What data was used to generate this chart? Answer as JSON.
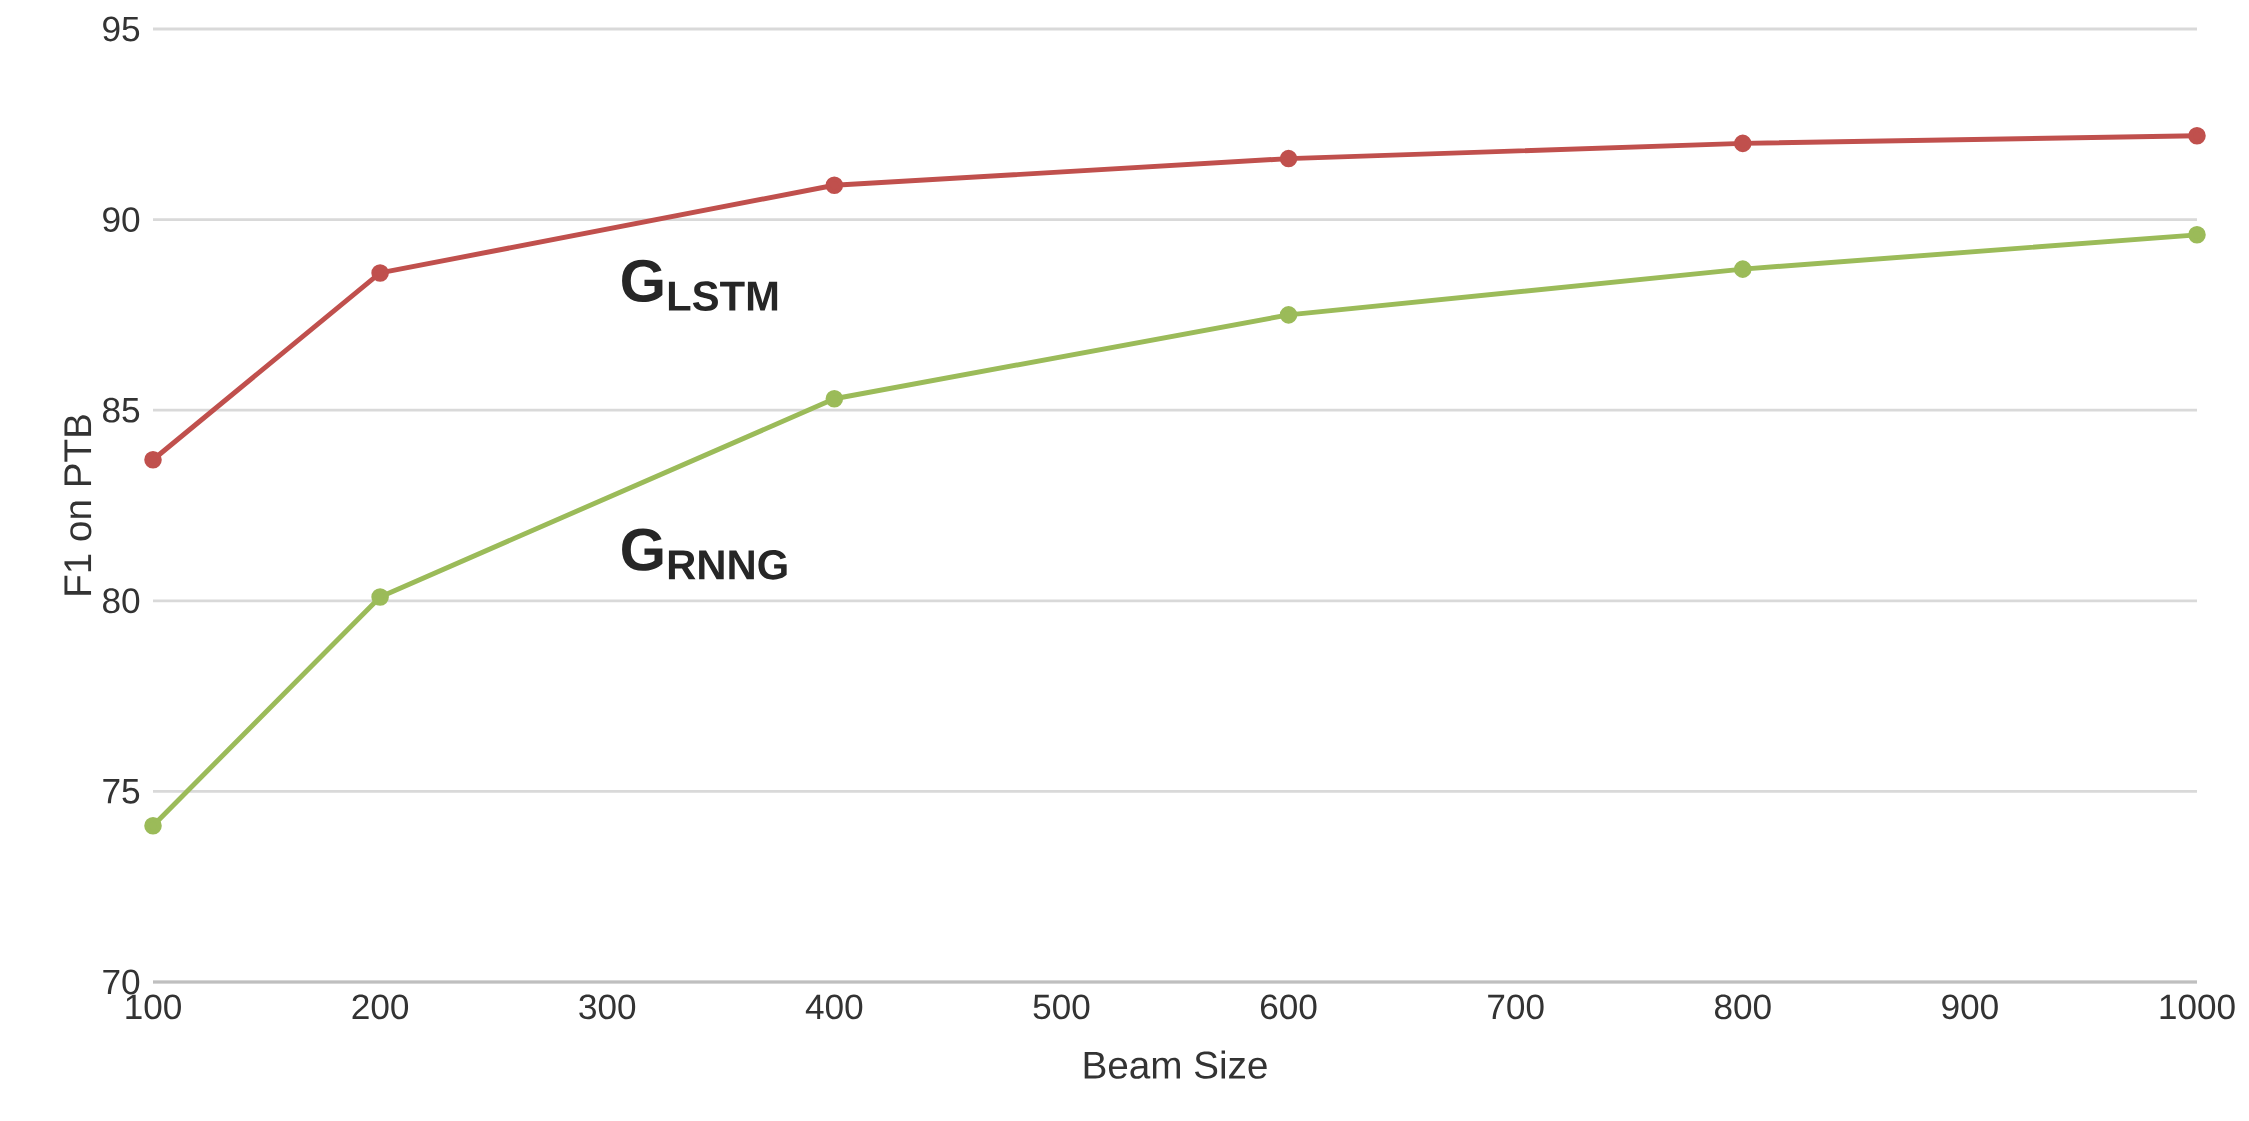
{
  "chart_data": {
    "type": "line",
    "xlabel": "Beam Size",
    "ylabel": "F1 on PTB",
    "x": [
      100,
      200,
      400,
      600,
      800,
      1000
    ],
    "series": [
      {
        "name": "G$_{LSTM}$",
        "color": "#c0504d",
        "values": [
          83.7,
          88.6,
          90.9,
          91.6,
          92.0,
          92.2
        ]
      },
      {
        "name": "G$_{RNNG}$",
        "color": "#9bbb59",
        "values": [
          74.1,
          80.1,
          85.3,
          87.5,
          88.7,
          89.6
        ]
      }
    ],
    "xlim": [
      100,
      1000
    ],
    "xticks": [
      100,
      200,
      300,
      400,
      500,
      600,
      700,
      800,
      900,
      1000
    ],
    "ylim": [
      70,
      95
    ],
    "yticks": [
      70,
      75,
      80,
      85,
      90,
      95
    ],
    "grid": "y",
    "marker": "circle",
    "line_style": "solid"
  }
}
